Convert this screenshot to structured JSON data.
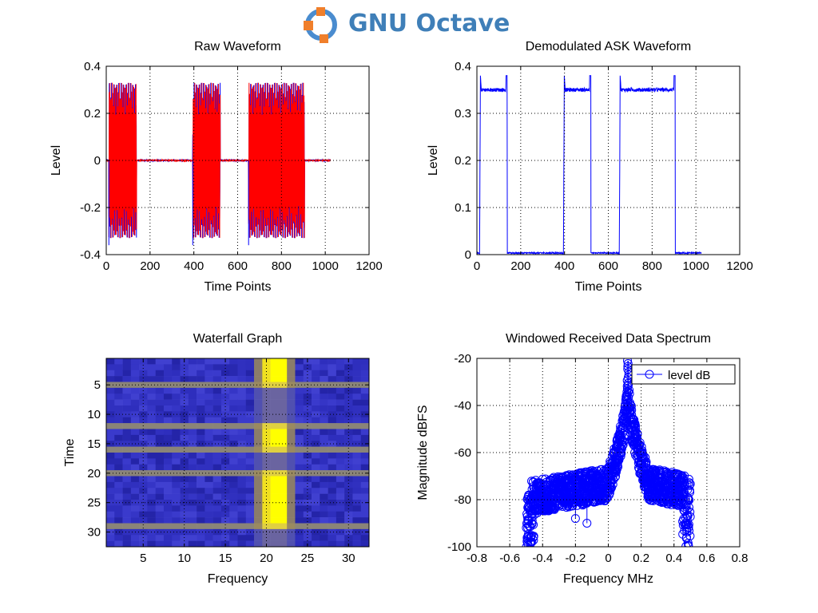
{
  "app": {
    "title": "GNU Octave",
    "logo_icon": "octave-logo-icon"
  },
  "chart_data": [
    {
      "type": "line",
      "title": "Raw Waveform",
      "xlabel": "Time Points",
      "ylabel": "Level",
      "xlim": [
        0,
        1200
      ],
      "ylim": [
        -0.4,
        0.4
      ],
      "xticks": [
        0,
        200,
        400,
        600,
        800,
        1000,
        1200
      ],
      "yticks": [
        -0.4,
        -0.2,
        0,
        0.2,
        0.4
      ],
      "xtick_labels": [
        "0",
        "200",
        "400",
        "600",
        "800",
        "1000",
        "1200"
      ],
      "ytick_labels": [
        "-0.4",
        "-0.2",
        "0",
        "0.2",
        "0.4"
      ],
      "grid": true,
      "series_colors": [
        "#0000ff",
        "#ff0000"
      ],
      "signal_span": [
        0,
        1024
      ],
      "bursts": [
        [
          12,
          138
        ],
        [
          395,
          520
        ],
        [
          650,
          905
        ]
      ],
      "burst_amplitude": 0.33
    },
    {
      "type": "line",
      "title": "Demodulated ASK Waveform",
      "xlabel": "Time Points",
      "ylabel": "Level",
      "xlim": [
        0,
        1200
      ],
      "ylim": [
        0,
        0.4
      ],
      "xticks": [
        0,
        200,
        400,
        600,
        800,
        1000,
        1200
      ],
      "yticks": [
        0,
        0.1,
        0.2,
        0.3,
        0.4
      ],
      "xtick_labels": [
        "0",
        "200",
        "400",
        "600",
        "800",
        "1000",
        "1200"
      ],
      "ytick_labels": [
        "0",
        "0.1",
        "0.2",
        "0.3",
        "0.4"
      ],
      "grid": true,
      "color": "#0000ff",
      "signal_span": [
        0,
        1024
      ],
      "pulses": [
        [
          12,
          138
        ],
        [
          395,
          520
        ],
        [
          650,
          905
        ]
      ],
      "pulse_level": 0.35,
      "peak_level": 0.38
    },
    {
      "type": "heatmap",
      "title": "Waterfall Graph",
      "xlabel": "Frequency",
      "ylabel": "Time",
      "xlim": [
        0.5,
        32.5
      ],
      "ylim": [
        32.5,
        0.5
      ],
      "xticks": [
        5,
        10,
        15,
        20,
        25,
        30
      ],
      "yticks": [
        5,
        10,
        15,
        20,
        25,
        30
      ],
      "xtick_labels": [
        "5",
        "10",
        "15",
        "20",
        "25",
        "30"
      ],
      "ytick_labels": [
        "5",
        "10",
        "15",
        "20",
        "25",
        "30"
      ],
      "grid": true,
      "rows": 32,
      "cols": 32,
      "high_frequency_columns": [
        20,
        21,
        22
      ],
      "active_rows": [
        [
          1,
          4
        ],
        [
          13,
          15
        ],
        [
          21,
          28
        ]
      ],
      "transition_rows": [
        5,
        12,
        16,
        20,
        29
      ],
      "colors": {
        "background": "#3030c0",
        "mid": "#8a8a60",
        "high": "#ffff00"
      }
    },
    {
      "type": "scatter",
      "title": "Windowed Received Data Spectrum",
      "xlabel": "Frequency MHz",
      "ylabel": "Magnitude dBFS",
      "xlim": [
        -0.8,
        0.8
      ],
      "ylim": [
        -100,
        -20
      ],
      "xticks": [
        -0.8,
        -0.6,
        -0.4,
        -0.2,
        0,
        0.2,
        0.4,
        0.6,
        0.8
      ],
      "yticks": [
        -100,
        -80,
        -60,
        -40,
        -20
      ],
      "xtick_labels": [
        "-0.8",
        "-0.6",
        "-0.4",
        "-0.2",
        "0",
        "0.2",
        "0.4",
        "0.6",
        "0.8"
      ],
      "ytick_labels": [
        "-100",
        "-80",
        "-60",
        "-40",
        "-20"
      ],
      "grid": true,
      "legend": {
        "label": "level dB",
        "placement": "top-right"
      },
      "color": "#0000ff",
      "peak": {
        "x": 0.12,
        "y": -21
      },
      "x_range": [
        -0.5,
        0.5
      ],
      "outliers": [
        {
          "x": -0.13,
          "y": -90
        },
        {
          "x": -0.2,
          "y": -88
        }
      ]
    }
  ]
}
